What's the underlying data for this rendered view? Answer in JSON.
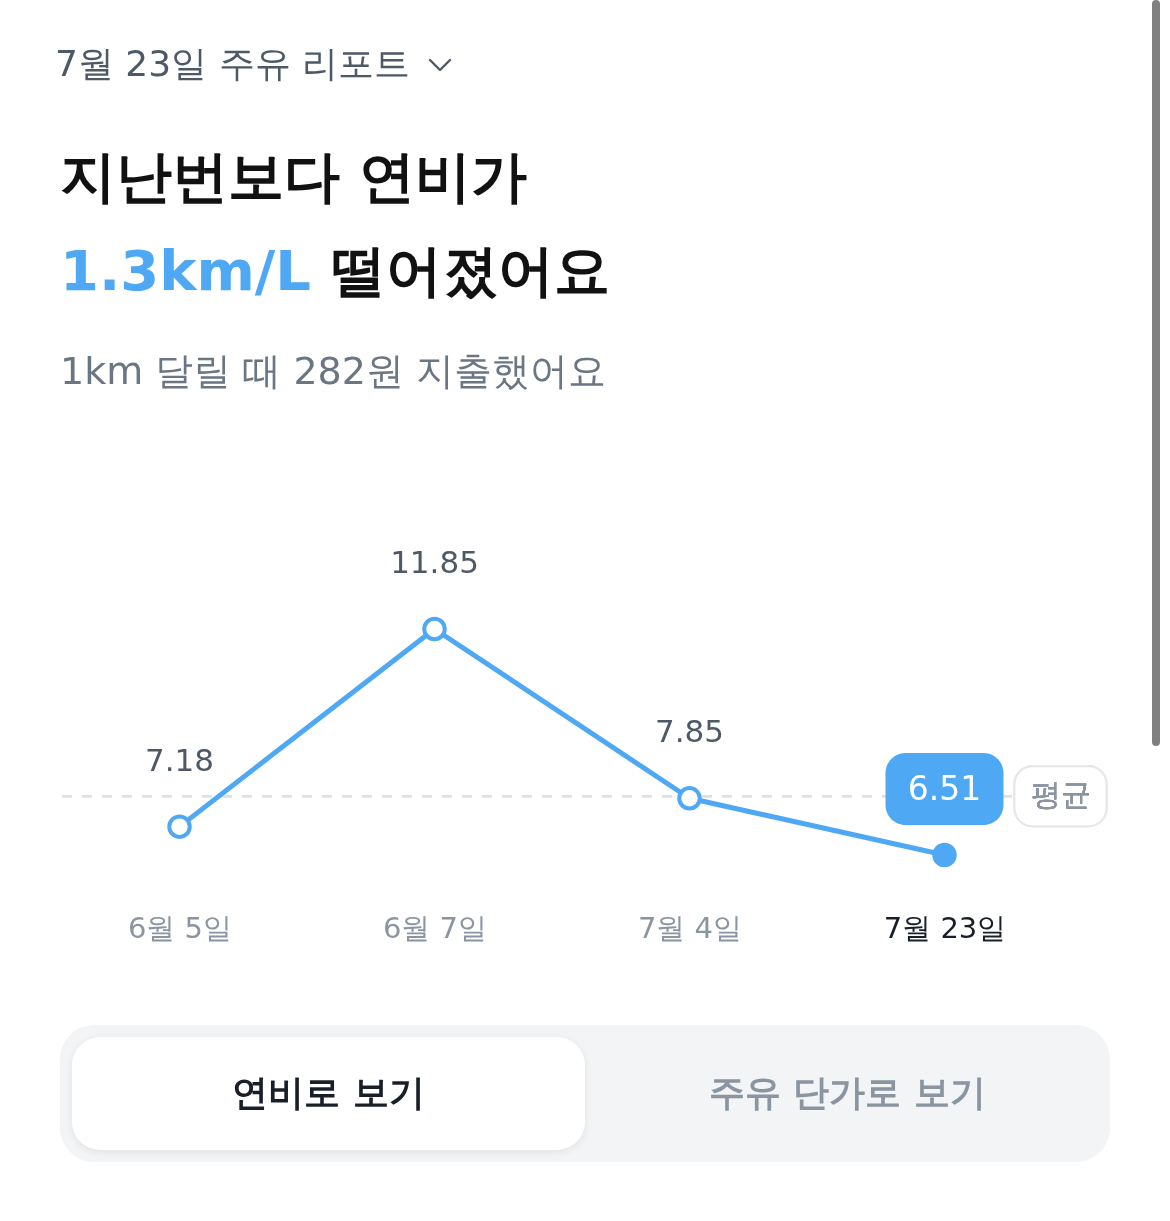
{
  "chart_data": {
    "type": "line",
    "title": "지난번보다 연비가\n1.3km/L 떨어졌어요",
    "subtitle": "1km 달릴 때 282원 지출했어요",
    "annotations": [
      "7월 23일 주유 리포트",
      "연비로 보기",
      "주유 단가로 보기"
    ],
    "categories": [
      "6월 5일",
      "6월 7일",
      "7월 4일",
      "7월 23일"
    ],
    "series": [
      {
        "color": "#4ea8f4",
        "values": [
          7.18,
          11.85,
          7.85,
          6.51
        ]
      }
    ],
    "tick_labels": "x",
    "data_labels": true,
    "marker": "circle",
    "ref_lines": [
      {
        "axis": "y",
        "value": 7.9,
        "label": "평균",
        "color": "#dcdfe3",
        "line_style": "dashed"
      }
    ]
  }
}
